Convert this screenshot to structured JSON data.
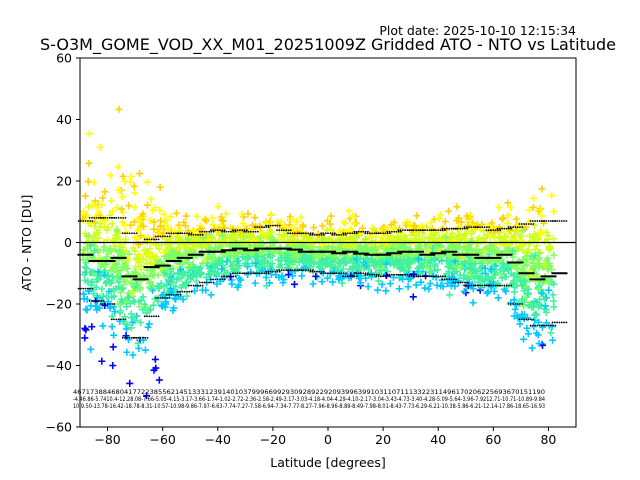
{
  "plot_date": "Plot date: 2025-10-10 12:15:34",
  "chart_data": {
    "type": "scatter",
    "title": "S-O3M_GOME_VOD_XX_M01_20251009Z Gridded ATO - NTO vs Latitude",
    "xlabel": "Latitude [degrees]",
    "ylabel": "ATO - NTO [DU]",
    "xlim": [
      -90,
      90
    ],
    "ylim": [
      -60,
      60
    ],
    "xticks": [
      -80,
      -60,
      -40,
      -20,
      0,
      20,
      40,
      60,
      80
    ],
    "yticks": [
      -60,
      -40,
      -20,
      0,
      20,
      40,
      60
    ],
    "zero_line": 0,
    "grid": false,
    "marker": "+",
    "colors": [
      "#0000ff",
      "#00c8ff",
      "#40f0a0",
      "#80ff60",
      "#d0ff20",
      "#ffff00",
      "#ffd000"
    ],
    "bins_lat": [
      -88,
      -84,
      -80,
      -76,
      -72,
      -68,
      -64,
      -60,
      -56,
      -52,
      -48,
      -44,
      -40,
      -36,
      -32,
      -28,
      -24,
      -20,
      -16,
      -12,
      -8,
      -4,
      0,
      4,
      8,
      12,
      16,
      20,
      24,
      28,
      32,
      36,
      40,
      44,
      48,
      52,
      56,
      60,
      64,
      68,
      72,
      76,
      80,
      84
    ],
    "mean": [
      -4,
      -6,
      -6,
      -5,
      -11,
      -12,
      -8,
      -7.5,
      -6,
      -5,
      -4,
      -3,
      -3,
      -2.5,
      -2,
      -2.5,
      -2,
      -2,
      -2,
      -2.3,
      -3,
      -3,
      -3,
      -3.5,
      -3,
      -3.6,
      -4,
      -4,
      -3.5,
      -3,
      -3,
      -4,
      -3.5,
      -3,
      -4,
      -4,
      -5,
      -5,
      -4,
      -6.5,
      -10,
      -12,
      -11,
      -10
    ],
    "upper": [
      7,
      8,
      8,
      8,
      3,
      0,
      1,
      2,
      3,
      3,
      2.5,
      3.5,
      4,
      3.5,
      4,
      3.5,
      5,
      5.5,
      4,
      3,
      3,
      2.5,
      3,
      2.5,
      3,
      3.5,
      3,
      3,
      3.5,
      4,
      4,
      4,
      4,
      4.5,
      4.5,
      5,
      5,
      4,
      4.5,
      5,
      6,
      7,
      7,
      7
    ],
    "lower": [
      -15,
      -19,
      -20,
      -25,
      -31,
      -31,
      -24,
      -18,
      -17,
      -16,
      -14,
      -13,
      -12,
      -11,
      -10,
      -10,
      -10,
      -9.5,
      -9,
      -9,
      -9,
      -9.5,
      -10,
      -10,
      -11,
      -10,
      -10.5,
      -11,
      -10.5,
      -10.5,
      -11,
      -11,
      -11,
      -12,
      -13,
      -14,
      -14,
      -14,
      -14,
      -20,
      -25,
      -27,
      -27,
      -26
    ],
    "annotations": {
      "counts": "467173884680417722385562145133312391401037999669929309289229209399639910311071113322311496170206225693670151190",
      "means": "-4.46.86-5.7410.4-12.28.08-7.66-5.05-4.15-3.17-3.66-1.74-1.02-2.72-2.36-2.58-2.49-3.17-3.03-4.18-4.04-4.29-4.10-2.17-3.04-3.43-4.73-3.40-4.28-5.09-5.64-3.96-7.9212.71-10.71-10.89-9.84",
      "stds": "10.9.50-13.78-16.42-18.78-8.31-10.57-10.98-9.86-7.97-6.63-7.74-7.27-7.58-6.94-7.34-7.77-8.27-7.96-8.96-8.89-8.49-7.98-8.01-8.43-7.73-6.29-6.21-10.38-5.86-6.21-12.14-17.86-18.65-16.93"
    }
  }
}
